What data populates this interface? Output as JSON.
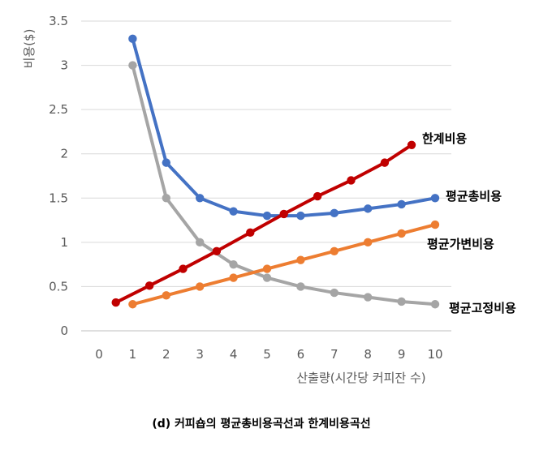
{
  "chart_data": {
    "type": "line",
    "title": "",
    "xlabel": "산출량(시간당 커피잔 수)",
    "ylabel": "비용($)",
    "caption": "(d)  커피숍의  평균총비용곡선과  한계비용곡선",
    "xlim": [
      0,
      10
    ],
    "ylim": [
      0,
      3.5
    ],
    "x_ticks": [
      "0",
      "1",
      "2",
      "3",
      "4",
      "5",
      "6",
      "7",
      "8",
      "9",
      "10"
    ],
    "y_ticks": [
      "0",
      "0.5",
      "1",
      "1.5",
      "2",
      "2.5",
      "3",
      "3.5"
    ],
    "grid": "horizontal",
    "legend": "inline labels at line ends",
    "series": [
      {
        "name": "한계비용",
        "color": "#c00000",
        "x": [
          0.5,
          1.5,
          2.5,
          3.5,
          4.5,
          5.5,
          6.5,
          7.5,
          8.5,
          9.3
        ],
        "y": [
          0.32,
          0.51,
          0.7,
          0.9,
          1.11,
          1.32,
          1.52,
          1.7,
          1.9,
          2.1
        ]
      },
      {
        "name": "평균총비용",
        "color": "#4472c4",
        "x": [
          1,
          2,
          3,
          4,
          5,
          6,
          7,
          8,
          9,
          10
        ],
        "y": [
          3.3,
          1.9,
          1.5,
          1.35,
          1.3,
          1.3,
          1.33,
          1.38,
          1.43,
          1.5
        ]
      },
      {
        "name": "평균가변비용",
        "color": "#ed7d31",
        "x": [
          1,
          2,
          3,
          4,
          5,
          6,
          7,
          8,
          9,
          10
        ],
        "y": [
          0.3,
          0.4,
          0.5,
          0.6,
          0.7,
          0.8,
          0.9,
          1.0,
          1.1,
          1.2
        ]
      },
      {
        "name": "평균고정비용",
        "color": "#a5a5a5",
        "x": [
          1,
          2,
          3,
          4,
          5,
          6,
          7,
          8,
          9,
          10
        ],
        "y": [
          3.0,
          1.5,
          1.0,
          0.75,
          0.6,
          0.5,
          0.43,
          0.38,
          0.33,
          0.3
        ]
      }
    ]
  }
}
